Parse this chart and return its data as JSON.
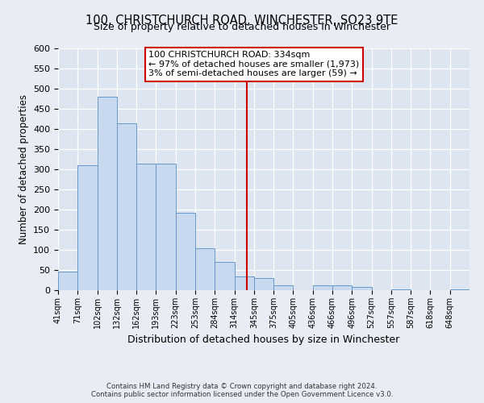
{
  "title": "100, CHRISTCHURCH ROAD, WINCHESTER, SO23 9TE",
  "subtitle": "Size of property relative to detached houses in Winchester",
  "xlabel": "Distribution of detached houses by size in Winchester",
  "ylabel": "Number of detached properties",
  "bin_labels": [
    "41sqm",
    "71sqm",
    "102sqm",
    "132sqm",
    "162sqm",
    "193sqm",
    "223sqm",
    "253sqm",
    "284sqm",
    "314sqm",
    "345sqm",
    "375sqm",
    "405sqm",
    "436sqm",
    "466sqm",
    "496sqm",
    "527sqm",
    "557sqm",
    "587sqm",
    "618sqm",
    "648sqm"
  ],
  "bar_heights": [
    47,
    310,
    480,
    415,
    315,
    315,
    193,
    105,
    70,
    35,
    30,
    13,
    0,
    13,
    13,
    8,
    0,
    3,
    0,
    0,
    3
  ],
  "bar_color": "#c8d8ee",
  "bar_edge_color": "#6699cc",
  "ylim": [
    0,
    600
  ],
  "yticks": [
    0,
    50,
    100,
    150,
    200,
    250,
    300,
    350,
    400,
    450,
    500,
    550,
    600
  ],
  "vline_color": "#cc0000",
  "annotation_title": "100 CHRISTCHURCH ROAD: 334sqm",
  "annotation_line1": "← 97% of detached houses are smaller (1,973)",
  "annotation_line2": "3% of semi-detached houses are larger (59) →",
  "annotation_box_color": "#ffffff",
  "annotation_box_edge": "#cc0000",
  "footer1": "Contains HM Land Registry data © Crown copyright and database right 2024.",
  "footer2": "Contains public sector information licensed under the Open Government Licence v3.0.",
  "bg_color": "#e8edf5",
  "plot_bg_color": "#dde5f0"
}
